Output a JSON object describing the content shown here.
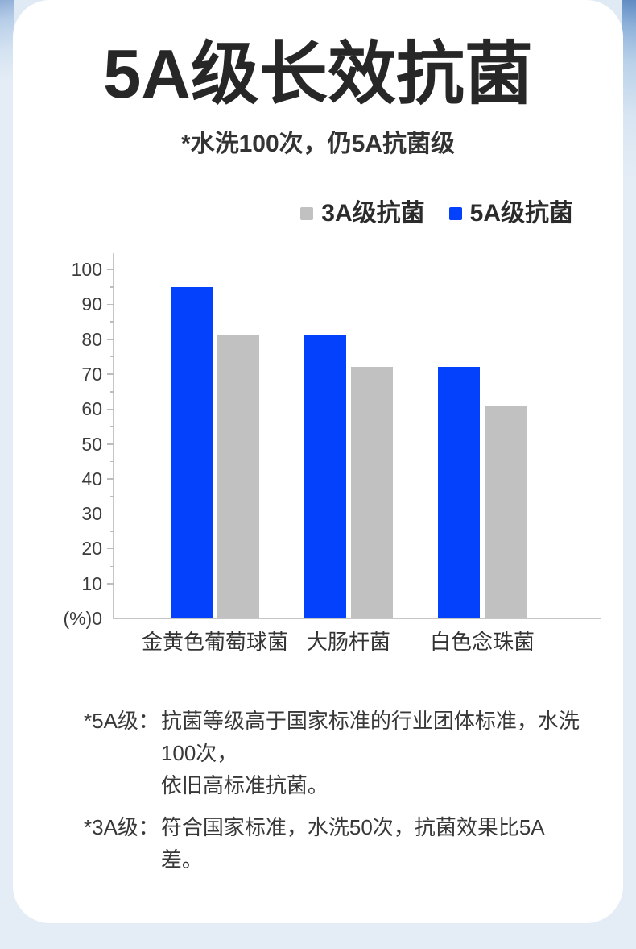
{
  "header": {
    "title": "5A级长效抗菌",
    "subtitle": "*水洗100次，仍5A抗菌级"
  },
  "legend": [
    {
      "label": "3A级抗菌",
      "color": "#c1c1c1"
    },
    {
      "label": "5A级抗菌",
      "color": "#0441fc"
    }
  ],
  "chart_data": {
    "type": "bar",
    "categories": [
      "金黄色葡萄球菌",
      "大肠杆菌",
      "白色念珠菌"
    ],
    "series": [
      {
        "name": "5A级抗菌",
        "color": "#0441fc",
        "values": [
          95,
          81,
          72
        ]
      },
      {
        "name": "3A级抗菌",
        "color": "#c1c1c1",
        "values": [
          81,
          72,
          61
        ]
      }
    ],
    "ylim": [
      0,
      100
    ],
    "y_tick_step": 10,
    "y_minor_tick_step": 5,
    "y_zero_label": "(%)0",
    "y_unit": "(%)",
    "grid": false,
    "legend_position": "top-right"
  },
  "footnotes": [
    {
      "label": "*5A级：",
      "lines": [
        "抗菌等级高于国家标准的行业团体标准，水洗100次，",
        "依旧高标准抗菌。"
      ]
    },
    {
      "label": "*3A级：",
      "lines": [
        "符合国家标准，水洗50次，抗菌效果比5A差。"
      ]
    }
  ],
  "colors": {
    "bar_blue": "#0441fc",
    "bar_gray": "#c1c1c1",
    "page_bg": "#e4edf6",
    "card_bg": "#ffffff",
    "axis": "#c6c6c6",
    "title_text": "#272727"
  }
}
